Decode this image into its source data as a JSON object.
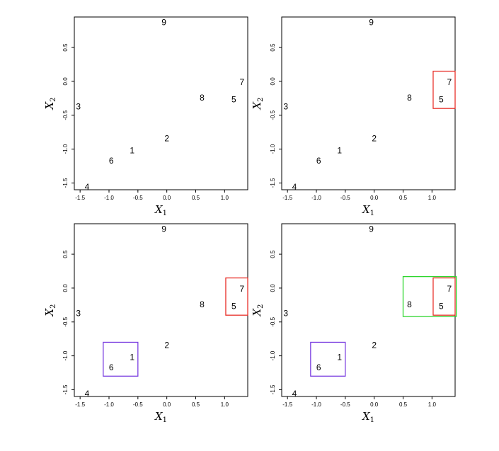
{
  "chart_data": [
    {
      "type": "scatter",
      "title": "",
      "xlabel": "X1",
      "ylabel": "X2",
      "xlim": [
        -1.6,
        1.4
      ],
      "ylim": [
        -1.6,
        0.95
      ],
      "xticks": [
        "-1.5",
        "-1.0",
        "-0.5",
        "0.0",
        "0.5",
        "1.0"
      ],
      "yticks": [
        "-1.5",
        "-1.0",
        "-0.5",
        "0.0",
        "0.5"
      ],
      "points": [
        {
          "label": "1",
          "x": -0.6,
          "y": -1.02
        },
        {
          "label": "2",
          "x": 0.0,
          "y": -0.84
        },
        {
          "label": "3",
          "x": -1.53,
          "y": -0.37
        },
        {
          "label": "4",
          "x": -1.38,
          "y": -1.56
        },
        {
          "label": "5",
          "x": 1.16,
          "y": -0.27
        },
        {
          "label": "6",
          "x": -0.96,
          "y": -1.17
        },
        {
          "label": "7",
          "x": 1.3,
          "y": -0.01
        },
        {
          "label": "8",
          "x": 0.61,
          "y": -0.24
        },
        {
          "label": "9",
          "x": -0.05,
          "y": 0.87
        }
      ],
      "boxes": []
    },
    {
      "type": "scatter",
      "title": "",
      "xlabel": "X1",
      "ylabel": "X2",
      "xlim": [
        -1.6,
        1.4
      ],
      "ylim": [
        -1.6,
        0.95
      ],
      "xticks": [
        "-1.5",
        "-1.0",
        "-0.5",
        "0.0",
        "0.5",
        "1.0"
      ],
      "yticks": [
        "-1.5",
        "-1.0",
        "-0.5",
        "0.0",
        "0.5"
      ],
      "points": [
        {
          "label": "1",
          "x": -0.6,
          "y": -1.02
        },
        {
          "label": "2",
          "x": 0.0,
          "y": -0.84
        },
        {
          "label": "3",
          "x": -1.53,
          "y": -0.37
        },
        {
          "label": "4",
          "x": -1.38,
          "y": -1.56
        },
        {
          "label": "5",
          "x": 1.16,
          "y": -0.27
        },
        {
          "label": "6",
          "x": -0.96,
          "y": -1.17
        },
        {
          "label": "7",
          "x": 1.3,
          "y": -0.01
        },
        {
          "label": "8",
          "x": 0.61,
          "y": -0.24
        },
        {
          "label": "9",
          "x": -0.05,
          "y": 0.87
        }
      ],
      "boxes": [
        {
          "x0": 1.02,
          "x1": 1.4,
          "y0": -0.4,
          "y1": 0.15,
          "color": "#e8302a"
        }
      ]
    },
    {
      "type": "scatter",
      "title": "",
      "xlabel": "X1",
      "ylabel": "X2",
      "xlim": [
        -1.6,
        1.4
      ],
      "ylim": [
        -1.6,
        0.95
      ],
      "xticks": [
        "-1.5",
        "-1.0",
        "-0.5",
        "0.0",
        "0.5",
        "1.0"
      ],
      "yticks": [
        "-1.5",
        "-1.0",
        "-0.5",
        "0.0",
        "0.5"
      ],
      "points": [
        {
          "label": "1",
          "x": -0.6,
          "y": -1.02
        },
        {
          "label": "2",
          "x": 0.0,
          "y": -0.84
        },
        {
          "label": "3",
          "x": -1.53,
          "y": -0.37
        },
        {
          "label": "4",
          "x": -1.38,
          "y": -1.56
        },
        {
          "label": "5",
          "x": 1.16,
          "y": -0.27
        },
        {
          "label": "6",
          "x": -0.96,
          "y": -1.17
        },
        {
          "label": "7",
          "x": 1.3,
          "y": -0.01
        },
        {
          "label": "8",
          "x": 0.61,
          "y": -0.24
        },
        {
          "label": "9",
          "x": -0.05,
          "y": 0.87
        }
      ],
      "boxes": [
        {
          "x0": 1.02,
          "x1": 1.4,
          "y0": -0.4,
          "y1": 0.15,
          "color": "#e8302a"
        },
        {
          "x0": -1.1,
          "x1": -0.5,
          "y0": -1.3,
          "y1": -0.8,
          "color": "#7b3fe0"
        }
      ]
    },
    {
      "type": "scatter",
      "title": "",
      "xlabel": "X1",
      "ylabel": "X2",
      "xlim": [
        -1.6,
        1.4
      ],
      "ylim": [
        -1.6,
        0.95
      ],
      "xticks": [
        "-1.5",
        "-1.0",
        "-0.5",
        "0.0",
        "0.5",
        "1.0"
      ],
      "yticks": [
        "-1.5",
        "-1.0",
        "-0.5",
        "0.0",
        "0.5"
      ],
      "points": [
        {
          "label": "1",
          "x": -0.6,
          "y": -1.02
        },
        {
          "label": "2",
          "x": 0.0,
          "y": -0.84
        },
        {
          "label": "3",
          "x": -1.53,
          "y": -0.37
        },
        {
          "label": "4",
          "x": -1.38,
          "y": -1.56
        },
        {
          "label": "5",
          "x": 1.16,
          "y": -0.27
        },
        {
          "label": "6",
          "x": -0.96,
          "y": -1.17
        },
        {
          "label": "7",
          "x": 1.3,
          "y": -0.01
        },
        {
          "label": "8",
          "x": 0.61,
          "y": -0.24
        },
        {
          "label": "9",
          "x": -0.05,
          "y": 0.87
        }
      ],
      "boxes": [
        {
          "x0": 1.02,
          "x1": 1.4,
          "y0": -0.4,
          "y1": 0.15,
          "color": "#e8302a"
        },
        {
          "x0": -1.1,
          "x1": -0.5,
          "y0": -1.3,
          "y1": -0.8,
          "color": "#7b3fe0"
        },
        {
          "x0": 0.5,
          "x1": 1.42,
          "y0": -0.42,
          "y1": 0.17,
          "color": "#2fd62f"
        }
      ]
    }
  ]
}
